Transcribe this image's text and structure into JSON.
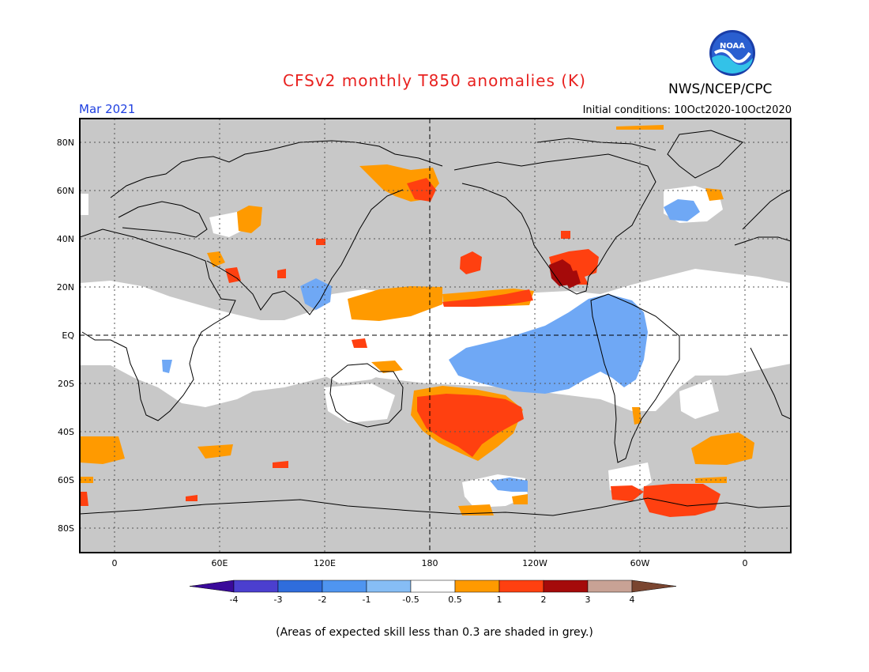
{
  "title": "CFSv2 monthly T850 anomalies (K)",
  "agency": "NWS/NCEP/CPC",
  "logo_text": "NOAA",
  "month": "Mar 2021",
  "initial_conditions": "Initial conditions: 10Oct2020-10Oct2020",
  "footnote": "(Areas of expected skill less than 0.3 are shaded in grey.)",
  "lat_labels": [
    "80N",
    "60N",
    "40N",
    "20N",
    "EQ",
    "20S",
    "40S",
    "60S",
    "80S"
  ],
  "lon_labels": [
    "0",
    "60E",
    "120E",
    "180",
    "120W",
    "60W",
    "0"
  ],
  "colorbar": {
    "labels": [
      "-4",
      "-3",
      "-2",
      "-1",
      "-0.5",
      "0.5",
      "1",
      "2",
      "3",
      "4"
    ],
    "colors": [
      "#3a0a9a",
      "#4b3fcf",
      "#2f6ddc",
      "#4f95f0",
      "#86bdf5",
      "#ffffff",
      "#ff9a00",
      "#ff4010",
      "#a50a0a",
      "#c8a295",
      "#7a4530"
    ]
  },
  "colors": {
    "skill_grey": "#c8c8c8",
    "title_red": "#e8211f",
    "month_blue": "#1e3fe0"
  }
}
